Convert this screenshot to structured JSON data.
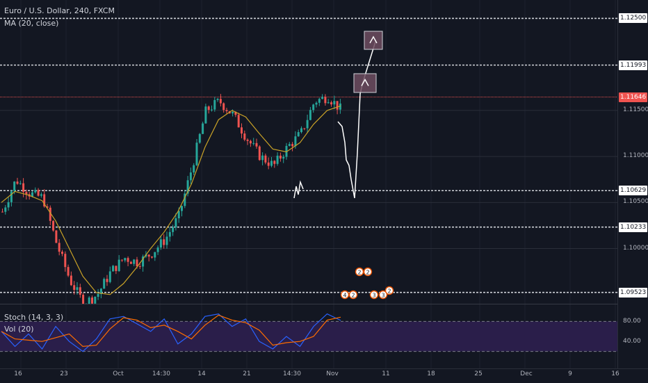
{
  "legend": {
    "symbol": "Euro / U.S. Dollar, 240, FXCM",
    "ma": "MA (20, close)",
    "stoch": "Stoch (14, 3, 3)",
    "vol": "Vol (20)"
  },
  "price_axis": {
    "levels": [
      {
        "value": "1.12500",
        "tag": true
      },
      {
        "value": "1.11993",
        "tag": true
      },
      {
        "value": "1.11646",
        "tag": true,
        "current": true
      },
      {
        "value": "1.11500",
        "tag": false
      },
      {
        "value": "1.11000",
        "tag": false
      },
      {
        "value": "1.10629",
        "tag": true
      },
      {
        "value": "1.10500",
        "tag": false
      },
      {
        "value": "1.10233",
        "tag": true
      },
      {
        "value": "1.10000",
        "tag": false
      },
      {
        "value": "1.09523",
        "tag": true
      }
    ]
  },
  "stoch_axis": [
    "80.00",
    "40.00"
  ],
  "time_axis": [
    "16",
    "23",
    "Oct",
    "14:30",
    "14",
    "21",
    "14:30",
    "Nov",
    "11",
    "18",
    "25",
    "Dec",
    "9",
    "16"
  ],
  "colors": {
    "background": "#131722",
    "up": "#26a69a",
    "down": "#ef5350",
    "ma": "#c9a227",
    "band": "#2a1e4a",
    "level_line": "#cfd2d8",
    "current_line": "#ef5350"
  },
  "markers": [
    "2",
    "2",
    "4",
    "2",
    "3",
    "3",
    "2"
  ],
  "chart_data": {
    "type": "line",
    "title": "Euro / U.S. Dollar, 240, FXCM",
    "xlabel": "",
    "ylabel": "",
    "ylim": [
      1.094,
      1.127
    ],
    "horizontal_levels": [
      1.125,
      1.11993,
      1.10629,
      1.10233,
      1.09523
    ],
    "current_price": 1.11646,
    "series": [
      {
        "name": "MA (20, close)",
        "x": [
          0,
          10,
          20,
          30,
          40,
          50,
          60,
          70,
          80,
          90,
          100,
          110,
          120,
          130,
          140,
          150,
          160,
          170,
          180,
          190,
          200,
          210,
          220,
          230,
          240,
          250
        ],
        "values": [
          1.105,
          1.1062,
          1.1058,
          1.1052,
          1.103,
          1.1,
          1.097,
          1.0952,
          1.095,
          1.0962,
          1.098,
          1.1,
          1.1018,
          1.104,
          1.107,
          1.111,
          1.114,
          1.115,
          1.1143,
          1.1125,
          1.1108,
          1.1105,
          1.1115,
          1.1135,
          1.115,
          1.1155
        ]
      },
      {
        "name": "close",
        "x": [
          0,
          10,
          20,
          30,
          40,
          50,
          60,
          70,
          80,
          90,
          100,
          110,
          120,
          130,
          140,
          150,
          160,
          170,
          180,
          190,
          200,
          210,
          220,
          230,
          240,
          250
        ],
        "values": [
          1.104,
          1.1075,
          1.106,
          1.1055,
          1.1005,
          1.0965,
          1.094,
          1.095,
          1.0975,
          1.099,
          1.0985,
          1.0995,
          1.101,
          1.1035,
          1.109,
          1.115,
          1.116,
          1.1145,
          1.112,
          1.11,
          1.109,
          1.111,
          1.1125,
          1.116,
          1.1165,
          1.115
        ]
      }
    ],
    "stoch": {
      "levels": [
        80,
        20
      ],
      "k": [
        60,
        30,
        55,
        25,
        70,
        40,
        20,
        45,
        85,
        90,
        75,
        60,
        85,
        35,
        55,
        90,
        95,
        70,
        85,
        40,
        25,
        50,
        30,
        70,
        95,
        82
      ]
    }
  }
}
